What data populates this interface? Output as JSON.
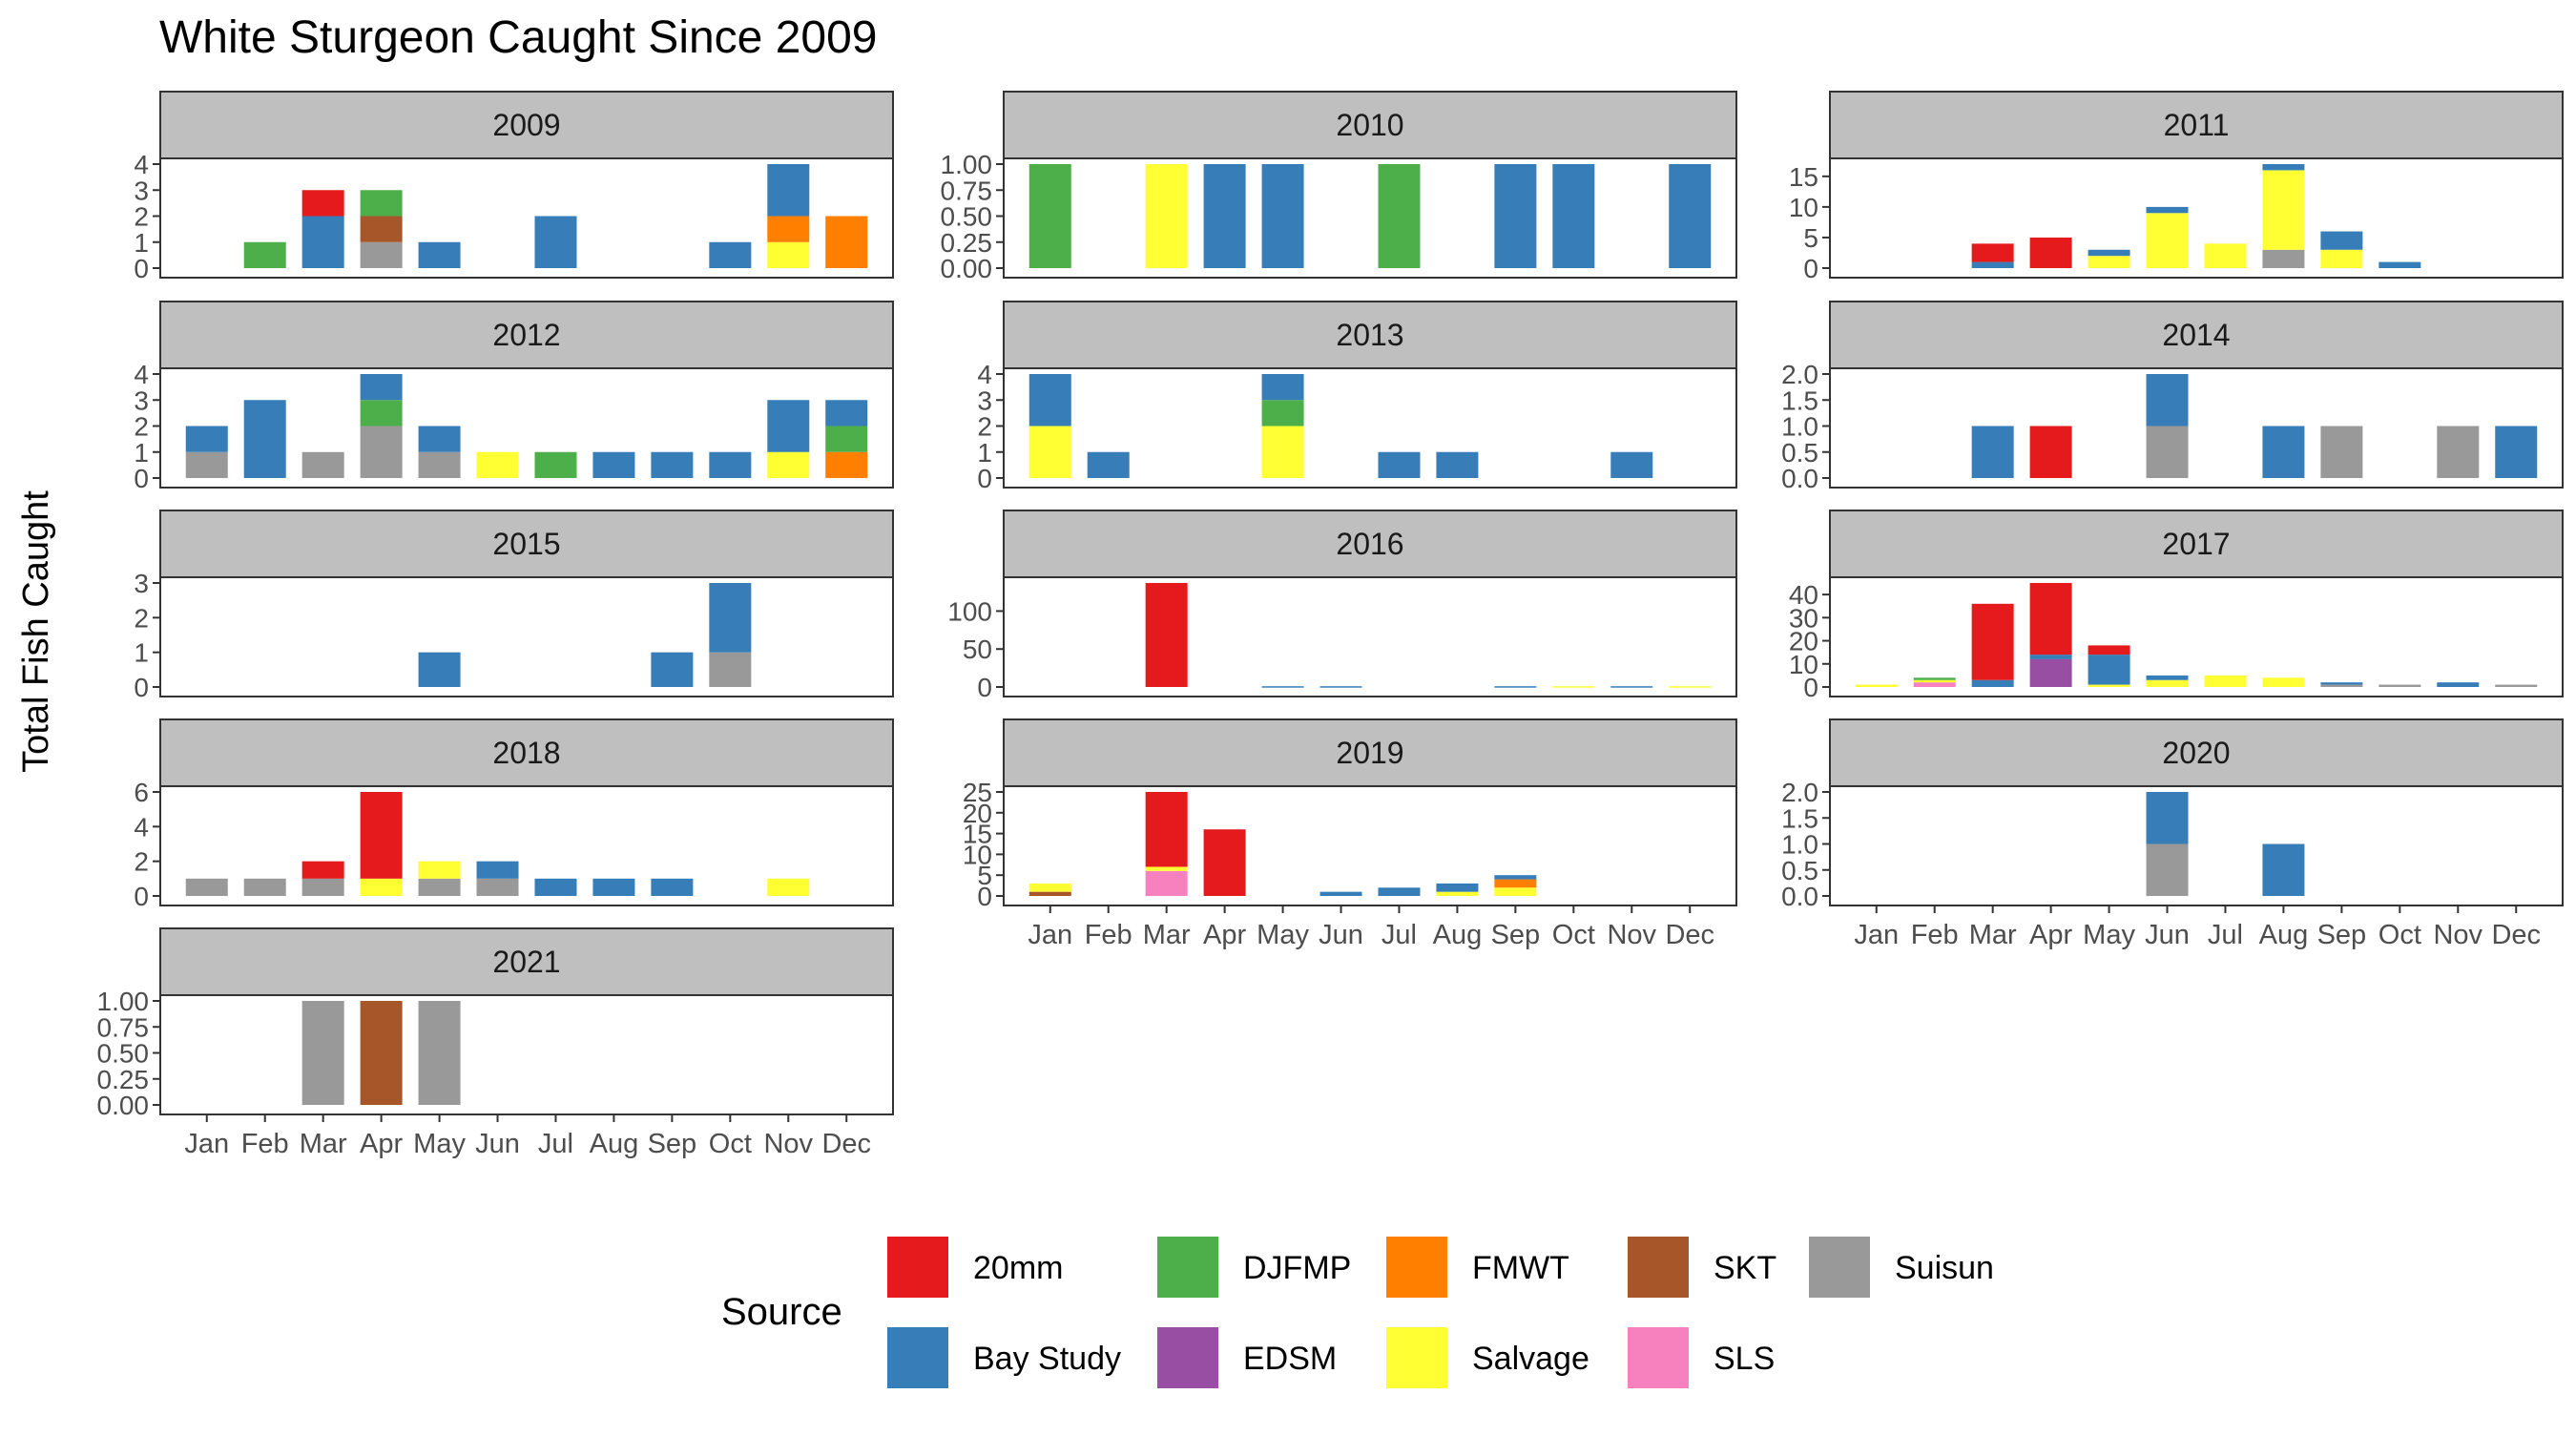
{
  "chart_data": {
    "type": "bar",
    "title": "White Sturgeon Caught Since 2009",
    "ylabel": "Total Fish Caught",
    "xlabel": "",
    "months": [
      "Jan",
      "Feb",
      "Mar",
      "Apr",
      "May",
      "Jun",
      "Jul",
      "Aug",
      "Sep",
      "Oct",
      "Nov",
      "Dec"
    ],
    "legend": {
      "title": "Source",
      "items": [
        {
          "name": "20mm",
          "color": "#E41A1C"
        },
        {
          "name": "Bay Study",
          "color": "#377EB8"
        },
        {
          "name": "DJFMP",
          "color": "#4DAF4A"
        },
        {
          "name": "EDSM",
          "color": "#984EA3"
        },
        {
          "name": "FMWT",
          "color": "#FF7F00"
        },
        {
          "name": "Salvage",
          "color": "#FFFF33"
        },
        {
          "name": "SKT",
          "color": "#A65628"
        },
        {
          "name": "SLS",
          "color": "#F781BF"
        },
        {
          "name": "Suisun",
          "color": "#999999"
        }
      ]
    },
    "stack_order": [
      "Suisun",
      "SLS",
      "SKT",
      "Salvage",
      "FMWT",
      "EDSM",
      "DJFMP",
      "Bay Study",
      "20mm"
    ],
    "panels": [
      {
        "year": "2009",
        "ylim": [
          0,
          4
        ],
        "ticks": [
          "0",
          "1",
          "2",
          "3",
          "4"
        ],
        "tick_values": [
          0,
          1,
          2,
          3,
          4
        ],
        "data": {
          "Feb": {
            "DJFMP": 1
          },
          "Mar": {
            "Bay Study": 2,
            "20mm": 1
          },
          "Apr": {
            "Suisun": 1,
            "SKT": 1,
            "DJFMP": 1
          },
          "May": {
            "Bay Study": 1
          },
          "Jul": {
            "Bay Study": 2
          },
          "Oct": {
            "Bay Study": 1
          },
          "Nov": {
            "Salvage": 1,
            "FMWT": 1,
            "Bay Study": 2
          },
          "Dec": {
            "FMWT": 2
          }
        }
      },
      {
        "year": "2010",
        "ylim": [
          0,
          1
        ],
        "ticks": [
          "0.00",
          "0.25",
          "0.50",
          "0.75",
          "1.00"
        ],
        "tick_values": [
          0,
          0.25,
          0.5,
          0.75,
          1
        ],
        "data": {
          "Jan": {
            "DJFMP": 1
          },
          "Mar": {
            "Salvage": 1
          },
          "Apr": {
            "Bay Study": 1
          },
          "May": {
            "Bay Study": 1
          },
          "Jul": {
            "DJFMP": 1
          },
          "Sep": {
            "Bay Study": 1
          },
          "Oct": {
            "Bay Study": 1
          },
          "Dec": {
            "Bay Study": 1
          }
        }
      },
      {
        "year": "2011",
        "ylim": [
          0,
          17
        ],
        "ticks": [
          "0",
          "5",
          "10",
          "15"
        ],
        "tick_values": [
          0,
          5,
          10,
          15
        ],
        "data": {
          "Mar": {
            "Bay Study": 1,
            "20mm": 3
          },
          "Apr": {
            "20mm": 5
          },
          "May": {
            "Salvage": 2,
            "Bay Study": 1
          },
          "Jun": {
            "Salvage": 9,
            "Bay Study": 1
          },
          "Jul": {
            "Salvage": 4
          },
          "Aug": {
            "Suisun": 3,
            "Salvage": 13,
            "Bay Study": 1
          },
          "Sep": {
            "Salvage": 3,
            "Bay Study": 3
          },
          "Oct": {
            "Bay Study": 1
          }
        }
      },
      {
        "year": "2012",
        "ylim": [
          0,
          4
        ],
        "ticks": [
          "0",
          "1",
          "2",
          "3",
          "4"
        ],
        "tick_values": [
          0,
          1,
          2,
          3,
          4
        ],
        "data": {
          "Jan": {
            "Suisun": 1,
            "Bay Study": 1
          },
          "Feb": {
            "Bay Study": 3
          },
          "Mar": {
            "Suisun": 1
          },
          "Apr": {
            "Suisun": 2,
            "DJFMP": 1,
            "Bay Study": 1
          },
          "May": {
            "Suisun": 1,
            "Bay Study": 1
          },
          "Jun": {
            "Salvage": 1
          },
          "Jul": {
            "DJFMP": 1
          },
          "Aug": {
            "Bay Study": 1
          },
          "Sep": {
            "Bay Study": 1
          },
          "Oct": {
            "Bay Study": 1
          },
          "Nov": {
            "Salvage": 1,
            "Bay Study": 2
          },
          "Dec": {
            "FMWT": 1,
            "DJFMP": 1,
            "Bay Study": 1
          }
        }
      },
      {
        "year": "2013",
        "ylim": [
          0,
          4
        ],
        "ticks": [
          "0",
          "1",
          "2",
          "3",
          "4"
        ],
        "tick_values": [
          0,
          1,
          2,
          3,
          4
        ],
        "data": {
          "Jan": {
            "Salvage": 2,
            "Bay Study": 2
          },
          "Feb": {
            "Bay Study": 1
          },
          "May": {
            "Salvage": 2,
            "DJFMP": 1,
            "Bay Study": 1
          },
          "Jul": {
            "Bay Study": 1
          },
          "Aug": {
            "Bay Study": 1
          },
          "Nov": {
            "Bay Study": 1
          }
        }
      },
      {
        "year": "2014",
        "ylim": [
          0,
          2
        ],
        "ticks": [
          "0.0",
          "0.5",
          "1.0",
          "1.5",
          "2.0"
        ],
        "tick_values": [
          0,
          0.5,
          1,
          1.5,
          2
        ],
        "data": {
          "Mar": {
            "Bay Study": 1
          },
          "Apr": {
            "20mm": 1
          },
          "Jun": {
            "Suisun": 1,
            "Bay Study": 1
          },
          "Aug": {
            "Bay Study": 1
          },
          "Sep": {
            "Suisun": 1
          },
          "Nov": {
            "Suisun": 1
          },
          "Dec": {
            "Bay Study": 1
          }
        }
      },
      {
        "year": "2015",
        "ylim": [
          0,
          3
        ],
        "ticks": [
          "0",
          "1",
          "2",
          "3"
        ],
        "tick_values": [
          0,
          1,
          2,
          3
        ],
        "data": {
          "May": {
            "Bay Study": 1
          },
          "Sep": {
            "Bay Study": 1
          },
          "Oct": {
            "Suisun": 1,
            "Bay Study": 2
          }
        }
      },
      {
        "year": "2016",
        "ylim": [
          0,
          137
        ],
        "ticks": [
          "0",
          "50",
          "100"
        ],
        "tick_values": [
          0,
          50,
          100
        ],
        "data": {
          "Mar": {
            "20mm": 137
          },
          "May": {
            "Bay Study": 1
          },
          "Jun": {
            "Bay Study": 1
          },
          "Sep": {
            "Bay Study": 1
          },
          "Oct": {
            "Salvage": 1
          },
          "Nov": {
            "Bay Study": 1
          },
          "Dec": {
            "Salvage": 1
          }
        }
      },
      {
        "year": "2017",
        "ylim": [
          0,
          45
        ],
        "ticks": [
          "0",
          "10",
          "20",
          "30",
          "40"
        ],
        "tick_values": [
          0,
          10,
          20,
          30,
          40
        ],
        "data": {
          "Jan": {
            "Salvage": 1
          },
          "Feb": {
            "SLS": 2,
            "Salvage": 1,
            "DJFMP": 1
          },
          "Mar": {
            "Bay Study": 3,
            "20mm": 33
          },
          "Apr": {
            "EDSM": 12,
            "Bay Study": 2,
            "20mm": 31
          },
          "May": {
            "Salvage": 1,
            "Bay Study": 13,
            "20mm": 4
          },
          "Jun": {
            "Salvage": 3,
            "Bay Study": 2
          },
          "Jul": {
            "Salvage": 5
          },
          "Aug": {
            "Salvage": 4
          },
          "Sep": {
            "Suisun": 1,
            "Bay Study": 1
          },
          "Oct": {
            "Suisun": 1
          },
          "Nov": {
            "Bay Study": 2
          },
          "Dec": {
            "Suisun": 1
          }
        }
      },
      {
        "year": "2018",
        "ylim": [
          0,
          6
        ],
        "ticks": [
          "0",
          "2",
          "4",
          "6"
        ],
        "tick_values": [
          0,
          2,
          4,
          6
        ],
        "data": {
          "Jan": {
            "Suisun": 1
          },
          "Feb": {
            "Suisun": 1
          },
          "Mar": {
            "Suisun": 1,
            "20mm": 1
          },
          "Apr": {
            "Salvage": 1,
            "20mm": 5
          },
          "May": {
            "Suisun": 1,
            "Salvage": 1
          },
          "Jun": {
            "Suisun": 1,
            "Bay Study": 1
          },
          "Jul": {
            "Bay Study": 1
          },
          "Aug": {
            "Bay Study": 1
          },
          "Sep": {
            "Bay Study": 1
          },
          "Nov": {
            "Salvage": 1
          }
        }
      },
      {
        "year": "2019",
        "ylim": [
          0,
          25
        ],
        "ticks": [
          "0",
          "5",
          "10",
          "15",
          "20",
          "25"
        ],
        "tick_values": [
          0,
          5,
          10,
          15,
          20,
          25
        ],
        "data": {
          "Jan": {
            "SKT": 1,
            "Salvage": 2
          },
          "Mar": {
            "SLS": 6,
            "Salvage": 1,
            "20mm": 18
          },
          "Apr": {
            "20mm": 16
          },
          "Jun": {
            "Bay Study": 1
          },
          "Jul": {
            "Bay Study": 2
          },
          "Aug": {
            "Salvage": 1,
            "Bay Study": 2
          },
          "Sep": {
            "Salvage": 2,
            "FMWT": 2,
            "Bay Study": 1
          }
        }
      },
      {
        "year": "2020",
        "ylim": [
          0,
          2
        ],
        "ticks": [
          "0.0",
          "0.5",
          "1.0",
          "1.5",
          "2.0"
        ],
        "tick_values": [
          0,
          0.5,
          1,
          1.5,
          2
        ],
        "data": {
          "Jun": {
            "Suisun": 1,
            "Bay Study": 1
          },
          "Aug": {
            "Bay Study": 1
          }
        }
      },
      {
        "year": "2021",
        "ylim": [
          0,
          1
        ],
        "ticks": [
          "0.00",
          "0.25",
          "0.50",
          "0.75",
          "1.00"
        ],
        "tick_values": [
          0,
          0.25,
          0.5,
          0.75,
          1
        ],
        "data": {
          "Mar": {
            "Suisun": 1
          },
          "Apr": {
            "SKT": 1
          },
          "May": {
            "Suisun": 1
          }
        }
      }
    ]
  }
}
